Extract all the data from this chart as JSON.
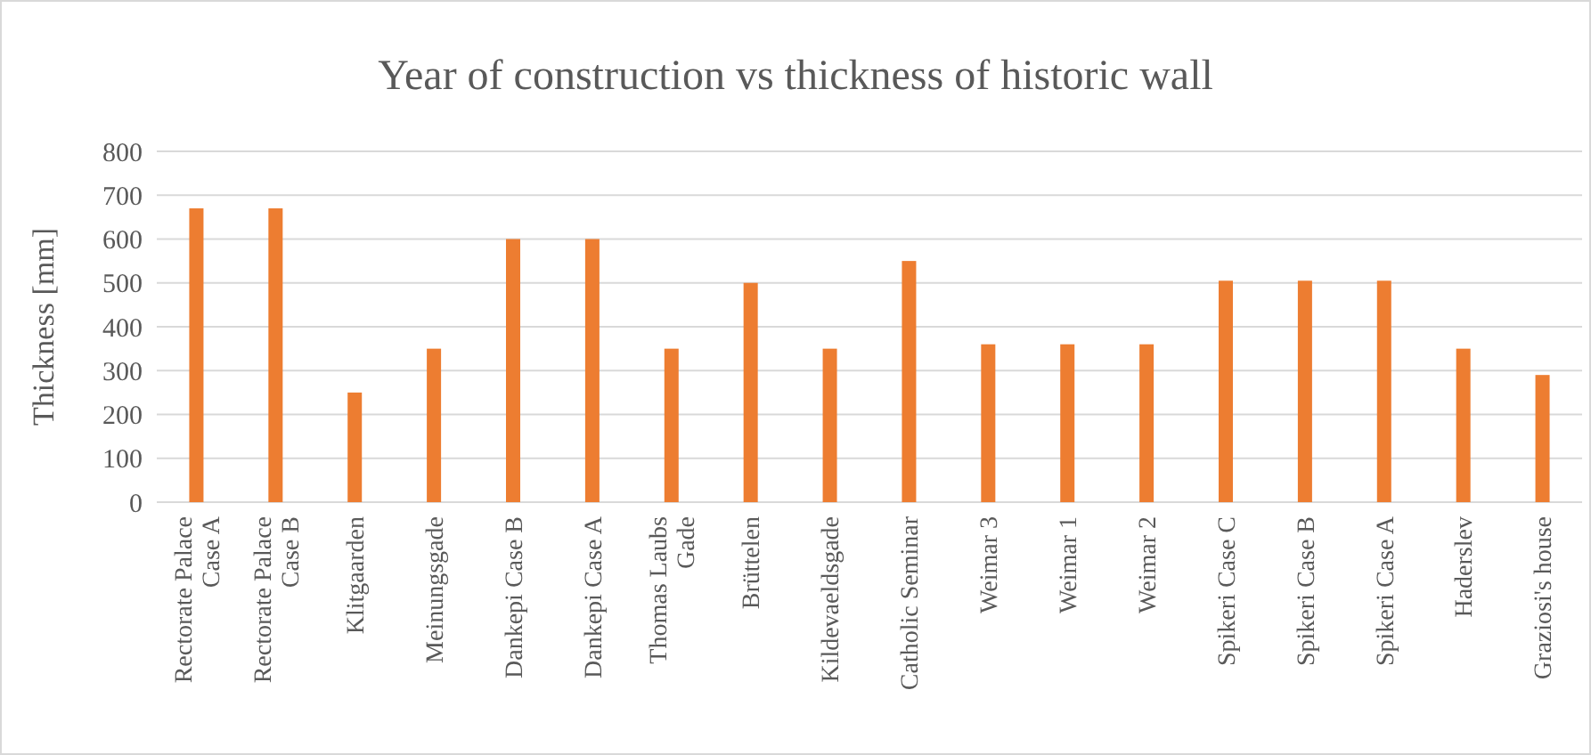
{
  "chart_data": {
    "type": "bar",
    "title": "Year of construction vs thickness of historic wall",
    "ylabel": "Thickness [mm]",
    "categories": [
      "Rectorate Palace Case A",
      "Rectorate Palace Case B",
      "Klitgaarden",
      "Meinungsgade",
      "Dankepi Case B",
      "Dankepi Case A",
      "Thomas Laubs Gade",
      "Brüttelen",
      "Kildevaeldsgade",
      "Catholic Seminar",
      "Weimar 3",
      "Weimar 1",
      "Weimar 2",
      "Spikeri Case C",
      "Spikeri Case B",
      "Spikeri Case A",
      "Haderslev",
      "Graziosi's house"
    ],
    "values": [
      670,
      670,
      250,
      350,
      600,
      600,
      350,
      500,
      350,
      550,
      360,
      360,
      360,
      505,
      505,
      505,
      350,
      290
    ],
    "color": "#ed7d31",
    "ylim": [
      0,
      800
    ],
    "yticks": [
      0,
      100,
      200,
      300,
      400,
      500,
      600,
      700,
      800
    ],
    "grid": "y"
  }
}
